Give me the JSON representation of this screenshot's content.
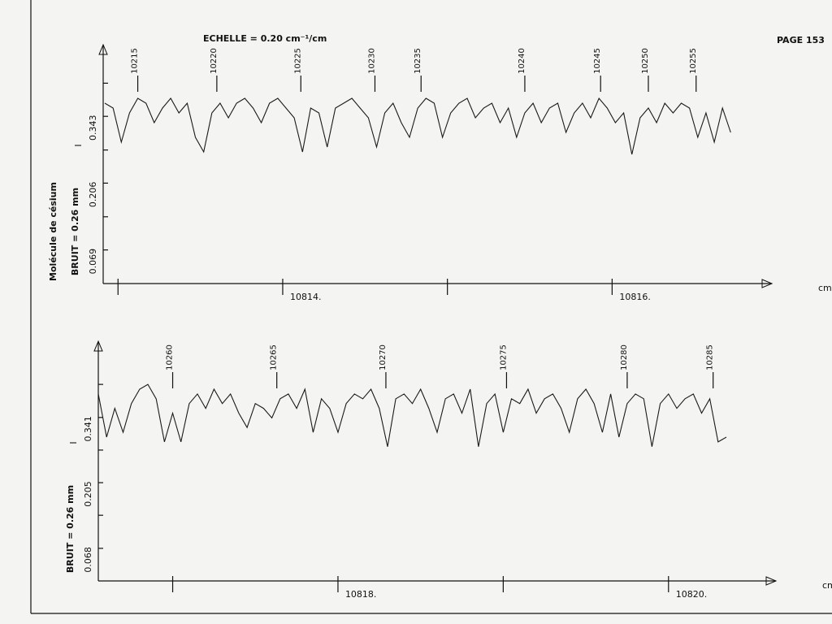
{
  "page": {
    "title": "ECHELLE = 0.20 cm⁻¹/cm",
    "page_number": "PAGE 153",
    "molecule": "Molécule de césium"
  },
  "chart_data": [
    {
      "type": "line",
      "y_label": "I",
      "noise": "BRUIT = 0.26 mm",
      "x_unit": "cm",
      "color": "#1a1a1a",
      "xlim": [
        10812.91,
        10816.97
      ],
      "ylim": [
        0,
        0.49
      ],
      "xticks": [
        {
          "value": 10813,
          "label": null
        },
        {
          "value": 10814,
          "label": "10814."
        },
        {
          "value": 10815,
          "label": null
        },
        {
          "value": 10816,
          "label": "10816."
        }
      ],
      "yticks": [
        0.069,
        {
          "value": 0.137,
          "label": null
        },
        0.206,
        {
          "value": 0.274,
          "label": null
        },
        0.343,
        {
          "value": 0.411,
          "label": null
        }
      ],
      "x": [
        10812.92,
        10812.97,
        10813.02,
        10813.07,
        10813.12,
        10813.17,
        10813.22,
        10813.27,
        10813.32,
        10813.37,
        10813.42,
        10813.47,
        10813.52,
        10813.57,
        10813.62,
        10813.67,
        10813.72,
        10813.77,
        10813.82,
        10813.87,
        10813.92,
        10813.97,
        10814.02,
        10814.07,
        10814.12,
        10814.17,
        10814.22,
        10814.27,
        10814.32,
        10814.37,
        10814.42,
        10814.47,
        10814.52,
        10814.57,
        10814.62,
        10814.67,
        10814.72,
        10814.77,
        10814.82,
        10814.87,
        10814.92,
        10814.97,
        10815.02,
        10815.07,
        10815.12,
        10815.17,
        10815.22,
        10815.27,
        10815.32,
        10815.37,
        10815.42,
        10815.47,
        10815.52,
        10815.57,
        10815.62,
        10815.67,
        10815.72,
        10815.77,
        10815.82,
        10815.87,
        10815.92,
        10815.97,
        10816.02,
        10816.07,
        10816.12,
        10816.17,
        10816.22,
        10816.27,
        10816.32,
        10816.37,
        10816.42,
        10816.47,
        10816.52,
        10816.57,
        10816.62,
        10816.67,
        10816.72
      ],
      "values": [
        0.37,
        0.36,
        0.29,
        0.35,
        0.38,
        0.37,
        0.33,
        0.36,
        0.38,
        0.35,
        0.37,
        0.3,
        0.27,
        0.35,
        0.37,
        0.34,
        0.37,
        0.38,
        0.36,
        0.33,
        0.37,
        0.38,
        0.36,
        0.34,
        0.27,
        0.36,
        0.35,
        0.28,
        0.36,
        0.37,
        0.38,
        0.36,
        0.34,
        0.28,
        0.35,
        0.37,
        0.33,
        0.3,
        0.36,
        0.38,
        0.37,
        0.3,
        0.35,
        0.37,
        0.38,
        0.34,
        0.36,
        0.37,
        0.33,
        0.36,
        0.3,
        0.35,
        0.37,
        0.33,
        0.36,
        0.37,
        0.31,
        0.35,
        0.37,
        0.34,
        0.38,
        0.36,
        0.33,
        0.35,
        0.265,
        0.34,
        0.36,
        0.33,
        0.37,
        0.35,
        0.37,
        0.36,
        0.3,
        0.35,
        0.29,
        0.36,
        0.31
      ],
      "annotations": [
        {
          "x": 10813.12,
          "label": "10215"
        },
        {
          "x": 10813.6,
          "label": "10220"
        },
        {
          "x": 10814.11,
          "label": "10225"
        },
        {
          "x": 10814.56,
          "label": "10230"
        },
        {
          "x": 10814.84,
          "label": "10235"
        },
        {
          "x": 10815.47,
          "label": "10240"
        },
        {
          "x": 10815.93,
          "label": "10245"
        },
        {
          "x": 10816.22,
          "label": "10250"
        },
        {
          "x": 10816.51,
          "label": "10255"
        }
      ]
    },
    {
      "type": "line",
      "y_label": "I",
      "noise": "BRUIT = 0.26 mm",
      "x_unit": "cm",
      "color": "#1a1a1a",
      "xlim": [
        10816.55,
        10820.65
      ],
      "ylim": [
        0,
        0.5
      ],
      "xticks": [
        {
          "value": 10817,
          "label": null
        },
        {
          "value": 10818,
          "label": "10818."
        },
        {
          "value": 10819,
          "label": null
        },
        {
          "value": 10820,
          "label": "10820."
        }
      ],
      "yticks": [
        0.068,
        {
          "value": 0.137,
          "label": null
        },
        0.205,
        {
          "value": 0.273,
          "label": null
        },
        0.341,
        {
          "value": 0.41,
          "label": null
        }
      ],
      "x": [
        10816.55,
        10816.6,
        10816.65,
        10816.7,
        10816.75,
        10816.8,
        10816.85,
        10816.9,
        10816.95,
        10817.0,
        10817.05,
        10817.1,
        10817.15,
        10817.2,
        10817.25,
        10817.3,
        10817.35,
        10817.4,
        10817.45,
        10817.5,
        10817.55,
        10817.6,
        10817.65,
        10817.7,
        10817.75,
        10817.8,
        10817.85,
        10817.9,
        10817.95,
        10818.0,
        10818.05,
        10818.1,
        10818.15,
        10818.2,
        10818.25,
        10818.3,
        10818.35,
        10818.4,
        10818.45,
        10818.5,
        10818.55,
        10818.6,
        10818.65,
        10818.7,
        10818.75,
        10818.8,
        10818.85,
        10818.9,
        10818.95,
        10819.0,
        10819.05,
        10819.1,
        10819.15,
        10819.2,
        10819.25,
        10819.3,
        10819.35,
        10819.4,
        10819.45,
        10819.5,
        10819.55,
        10819.6,
        10819.65,
        10819.7,
        10819.75,
        10819.8,
        10819.85,
        10819.9,
        10819.95,
        10820.0,
        10820.05,
        10820.1,
        10820.15,
        10820.2,
        10820.25,
        10820.3,
        10820.35
      ],
      "values": [
        0.39,
        0.3,
        0.36,
        0.31,
        0.37,
        0.4,
        0.41,
        0.38,
        0.29,
        0.35,
        0.29,
        0.37,
        0.39,
        0.36,
        0.4,
        0.37,
        0.39,
        0.35,
        0.32,
        0.37,
        0.36,
        0.34,
        0.38,
        0.39,
        0.36,
        0.4,
        0.31,
        0.38,
        0.36,
        0.31,
        0.37,
        0.39,
        0.38,
        0.4,
        0.36,
        0.28,
        0.38,
        0.39,
        0.37,
        0.4,
        0.36,
        0.31,
        0.38,
        0.39,
        0.35,
        0.4,
        0.28,
        0.37,
        0.39,
        0.31,
        0.38,
        0.37,
        0.4,
        0.35,
        0.38,
        0.39,
        0.36,
        0.31,
        0.38,
        0.4,
        0.37,
        0.31,
        0.39,
        0.3,
        0.37,
        0.39,
        0.38,
        0.28,
        0.37,
        0.39,
        0.36,
        0.38,
        0.39,
        0.35,
        0.38,
        0.29,
        0.3
      ],
      "annotations": [
        {
          "x": 10817.0,
          "label": "10260"
        },
        {
          "x": 10817.63,
          "label": "10265"
        },
        {
          "x": 10818.29,
          "label": "10270"
        },
        {
          "x": 10819.02,
          "label": "10275"
        },
        {
          "x": 10819.75,
          "label": "10280"
        },
        {
          "x": 10820.27,
          "label": "10285"
        }
      ]
    }
  ]
}
